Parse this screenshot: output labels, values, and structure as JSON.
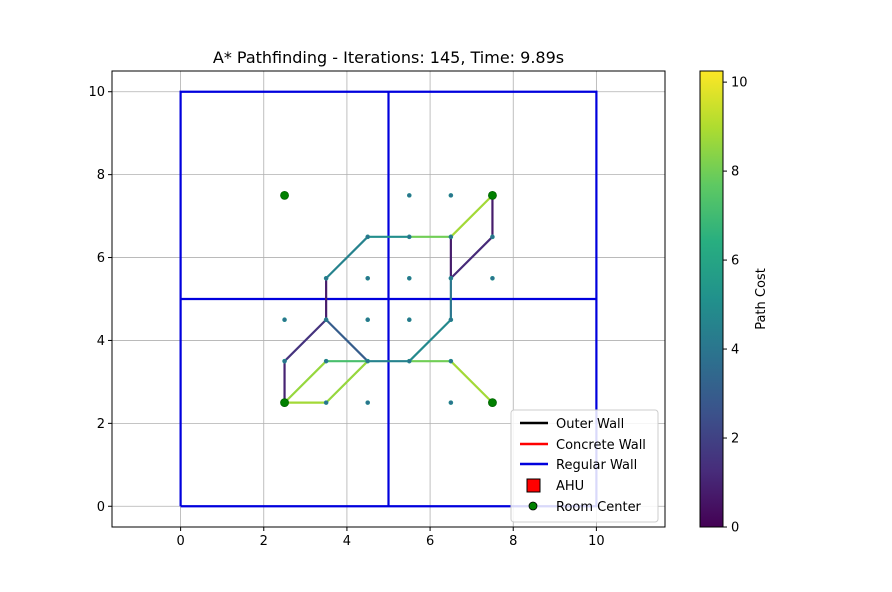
{
  "chart_data": {
    "type": "line",
    "title": "A* Pathfinding - Iterations: 145, Time: 9.89s",
    "xlabel": "",
    "ylabel": "",
    "xlim": [
      -1.65,
      11.65
    ],
    "ylim": [
      -0.5,
      10.5
    ],
    "x_ticks": [
      0,
      2,
      4,
      6,
      8,
      10
    ],
    "y_ticks": [
      0,
      2,
      4,
      6,
      8,
      10
    ],
    "x_tick_labels": [
      "0",
      "2",
      "4",
      "6",
      "8",
      "10"
    ],
    "y_tick_labels": [
      "0",
      "2",
      "4",
      "6",
      "8",
      "10"
    ],
    "grid": true,
    "walls": [
      {
        "type": "regular",
        "x": [
          0,
          10,
          10,
          0,
          0
        ],
        "y": [
          0,
          0,
          10,
          10,
          0
        ]
      },
      {
        "type": "regular",
        "x": [
          5,
          5
        ],
        "y": [
          0,
          10
        ]
      },
      {
        "type": "regular",
        "x": [
          0,
          10
        ],
        "y": [
          5,
          5
        ]
      }
    ],
    "wall_colors": {
      "outer": "#000000",
      "concrete": "#ff0000",
      "regular": "#0000dd"
    },
    "nodes": [
      [
        5.5,
        7.5
      ],
      [
        6.5,
        7.5
      ],
      [
        4.5,
        6.5
      ],
      [
        5.5,
        6.5
      ],
      [
        6.5,
        6.5
      ],
      [
        7.5,
        6.5
      ],
      [
        3.5,
        5.5
      ],
      [
        4.5,
        5.5
      ],
      [
        5.5,
        5.5
      ],
      [
        6.5,
        5.5
      ],
      [
        7.5,
        5.5
      ],
      [
        2.5,
        4.5
      ],
      [
        3.5,
        4.5
      ],
      [
        4.5,
        4.5
      ],
      [
        5.5,
        4.5
      ],
      [
        6.5,
        4.5
      ],
      [
        2.5,
        3.5
      ],
      [
        3.5,
        3.5
      ],
      [
        4.5,
        3.5
      ],
      [
        5.5,
        3.5
      ],
      [
        6.5,
        3.5
      ],
      [
        3.5,
        2.5
      ],
      [
        4.5,
        2.5
      ],
      [
        6.5,
        2.5
      ]
    ],
    "room_centers": [
      [
        2.5,
        7.5
      ],
      [
        7.5,
        7.5
      ],
      [
        2.5,
        2.5
      ],
      [
        7.5,
        2.5
      ]
    ],
    "path_segments": [
      {
        "x": [
          2.5,
          3.5
        ],
        "y": [
          2.5,
          2.5
        ],
        "cost": 8.8
      },
      {
        "x": [
          3.5,
          4.5
        ],
        "y": [
          2.5,
          3.5
        ],
        "cost": 8.6
      },
      {
        "x": [
          2.5,
          3.5
        ],
        "y": [
          2.5,
          3.5
        ],
        "cost": 8.6
      },
      {
        "x": [
          3.5,
          4.5
        ],
        "y": [
          3.5,
          3.5
        ],
        "cost": 7.2
      },
      {
        "x": [
          4.5,
          5.5
        ],
        "y": [
          3.5,
          3.5
        ],
        "cost": 4.5
      },
      {
        "x": [
          5.5,
          6.5
        ],
        "y": [
          3.5,
          3.5
        ],
        "cost": 8.0
      },
      {
        "x": [
          6.5,
          7.5
        ],
        "y": [
          3.5,
          2.5
        ],
        "cost": 8.8
      },
      {
        "x": [
          2.5,
          2.5
        ],
        "y": [
          2.5,
          3.5
        ],
        "cost": 1.0
      },
      {
        "x": [
          2.5,
          3.5
        ],
        "y": [
          3.5,
          4.5
        ],
        "cost": 1.5
      },
      {
        "x": [
          3.5,
          4.5
        ],
        "y": [
          4.5,
          3.5
        ],
        "cost": 3.0
      },
      {
        "x": [
          3.5,
          3.5
        ],
        "y": [
          4.5,
          5.5
        ],
        "cost": 0.8
      },
      {
        "x": [
          3.5,
          4.5
        ],
        "y": [
          5.5,
          6.5
        ],
        "cost": 4.5
      },
      {
        "x": [
          4.5,
          5.5
        ],
        "y": [
          6.5,
          6.5
        ],
        "cost": 5.0
      },
      {
        "x": [
          5.5,
          6.5
        ],
        "y": [
          6.5,
          6.5
        ],
        "cost": 8.0
      },
      {
        "x": [
          6.5,
          7.5
        ],
        "y": [
          6.5,
          7.5
        ],
        "cost": 8.8
      },
      {
        "x": [
          7.5,
          7.5
        ],
        "y": [
          7.5,
          6.5
        ],
        "cost": 0.8
      },
      {
        "x": [
          7.5,
          6.5
        ],
        "y": [
          6.5,
          5.5
        ],
        "cost": 1.2
      },
      {
        "x": [
          6.5,
          6.5
        ],
        "y": [
          6.5,
          5.5
        ],
        "cost": 0.8
      },
      {
        "x": [
          6.5,
          6.5
        ],
        "y": [
          5.5,
          4.5
        ],
        "cost": 4.0
      },
      {
        "x": [
          5.5,
          6.5
        ],
        "y": [
          3.5,
          4.5
        ],
        "cost": 4.8
      }
    ],
    "legend": {
      "placement": "lower-right",
      "entries": [
        {
          "label": "Outer Wall",
          "kind": "line",
          "color": "#000000"
        },
        {
          "label": "Concrete Wall",
          "kind": "line",
          "color": "#ff0000"
        },
        {
          "label": "Regular Wall",
          "kind": "line",
          "color": "#0000dd"
        },
        {
          "label": "AHU",
          "kind": "square",
          "color": "#ff0000"
        },
        {
          "label": "Room Center",
          "kind": "circle",
          "color": "#008000"
        }
      ]
    },
    "colorbar": {
      "label": "Path Cost",
      "colormap": "viridis",
      "range": [
        0,
        10.25
      ],
      "ticks": [
        0,
        2,
        4,
        6,
        8,
        10
      ],
      "tick_labels": [
        "0",
        "2",
        "4",
        "6",
        "8",
        "10"
      ]
    }
  }
}
